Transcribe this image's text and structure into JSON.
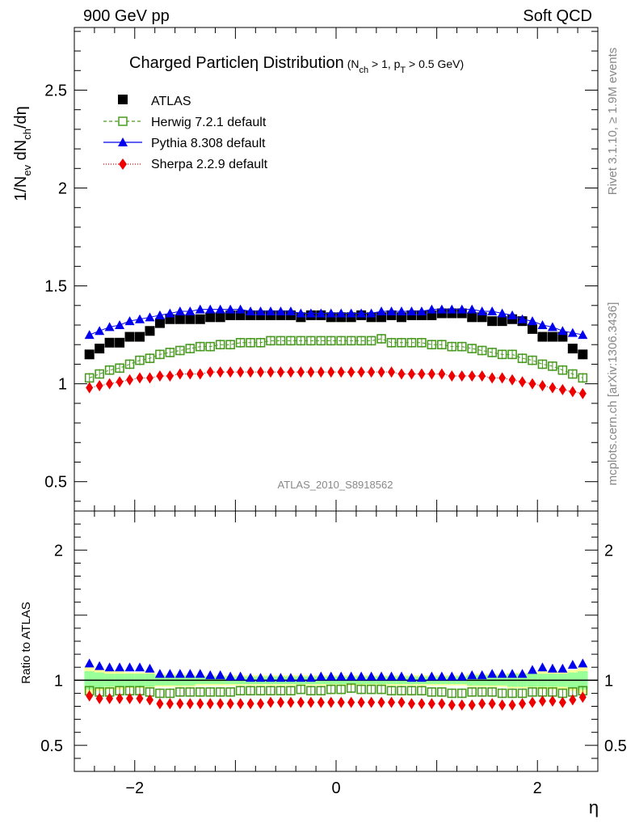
{
  "header": {
    "left": "900 GeV pp",
    "right": "Soft QCD"
  },
  "side": {
    "rivet": "Rivet 3.1.10, ≥ 1.9M events",
    "mcplots": "mcplots.cern.ch [arXiv:1306.3436]"
  },
  "chart_data": [
    {
      "type": "scatter",
      "title": {
        "main": "Charged Particle",
        "eta": "η",
        "dist": " Distribution",
        "cond_a": "(N",
        "cond_ch": "ch",
        "cond_b": " > 1, p",
        "cond_T": "T",
        "cond_c": " > 0.5 GeV)"
      },
      "ylabel_parts": [
        "1/N",
        "ev",
        " dN",
        "ch",
        "/dη"
      ],
      "watermark": "ATLAS_2010_S8918562",
      "xlim": [
        -2.6,
        2.6
      ],
      "ylim": [
        0.35,
        2.82
      ],
      "yticks": [
        "0.5",
        "1",
        "1.5",
        "2",
        "2.5"
      ],
      "x": [
        -2.45,
        -2.35,
        -2.25,
        -2.15,
        -2.05,
        -1.95,
        -1.85,
        -1.75,
        -1.65,
        -1.55,
        -1.45,
        -1.35,
        -1.25,
        -1.15,
        -1.05,
        -0.95,
        -0.85,
        -0.75,
        -0.65,
        -0.55,
        -0.45,
        -0.35,
        -0.25,
        -0.15,
        -0.05,
        0.05,
        0.15,
        0.25,
        0.35,
        0.45,
        0.55,
        0.65,
        0.75,
        0.85,
        0.95,
        1.05,
        1.15,
        1.25,
        1.35,
        1.45,
        1.55,
        1.65,
        1.75,
        1.85,
        1.95,
        2.05,
        2.15,
        2.25,
        2.35,
        2.45
      ],
      "series": [
        {
          "name": "ATLAS",
          "color": "#000000",
          "marker": "square",
          "values": [
            1.15,
            1.18,
            1.21,
            1.21,
            1.24,
            1.24,
            1.27,
            1.31,
            1.33,
            1.33,
            1.33,
            1.33,
            1.34,
            1.34,
            1.35,
            1.35,
            1.35,
            1.35,
            1.35,
            1.35,
            1.35,
            1.34,
            1.35,
            1.35,
            1.34,
            1.34,
            1.34,
            1.35,
            1.34,
            1.34,
            1.35,
            1.34,
            1.35,
            1.35,
            1.35,
            1.36,
            1.36,
            1.36,
            1.34,
            1.34,
            1.32,
            1.32,
            1.33,
            1.32,
            1.28,
            1.24,
            1.24,
            1.24,
            1.18,
            1.15
          ]
        },
        {
          "name": "Herwig 7.2.1 default",
          "color": "#4a9a22",
          "marker": "open-square",
          "line": "dashed",
          "values": [
            1.03,
            1.05,
            1.07,
            1.08,
            1.1,
            1.12,
            1.13,
            1.15,
            1.16,
            1.17,
            1.18,
            1.19,
            1.19,
            1.2,
            1.2,
            1.21,
            1.21,
            1.21,
            1.22,
            1.22,
            1.22,
            1.22,
            1.22,
            1.22,
            1.22,
            1.22,
            1.22,
            1.22,
            1.22,
            1.23,
            1.21,
            1.21,
            1.21,
            1.21,
            1.2,
            1.2,
            1.19,
            1.19,
            1.18,
            1.17,
            1.16,
            1.15,
            1.15,
            1.13,
            1.12,
            1.1,
            1.09,
            1.07,
            1.05,
            1.03
          ]
        },
        {
          "name": "Pythia 8.308 default",
          "color": "#0000ee",
          "marker": "triangle",
          "line": "solid",
          "values": [
            1.25,
            1.27,
            1.29,
            1.3,
            1.32,
            1.33,
            1.34,
            1.35,
            1.36,
            1.37,
            1.37,
            1.38,
            1.38,
            1.38,
            1.38,
            1.38,
            1.37,
            1.37,
            1.37,
            1.37,
            1.37,
            1.36,
            1.36,
            1.36,
            1.36,
            1.36,
            1.36,
            1.36,
            1.36,
            1.37,
            1.37,
            1.37,
            1.37,
            1.37,
            1.38,
            1.38,
            1.38,
            1.38,
            1.38,
            1.37,
            1.37,
            1.36,
            1.35,
            1.33,
            1.32,
            1.3,
            1.29,
            1.27,
            1.26,
            1.25
          ]
        },
        {
          "name": "Sherpa 2.2.9 default",
          "color": "#ee0000",
          "marker": "diamond",
          "line": "dotted",
          "values": [
            0.98,
            0.99,
            1.0,
            1.01,
            1.02,
            1.03,
            1.03,
            1.04,
            1.04,
            1.05,
            1.05,
            1.05,
            1.06,
            1.06,
            1.06,
            1.06,
            1.06,
            1.06,
            1.06,
            1.06,
            1.06,
            1.06,
            1.06,
            1.06,
            1.06,
            1.06,
            1.06,
            1.06,
            1.06,
            1.06,
            1.06,
            1.05,
            1.05,
            1.05,
            1.05,
            1.05,
            1.04,
            1.04,
            1.04,
            1.04,
            1.03,
            1.03,
            1.02,
            1.01,
            1.0,
            0.99,
            0.98,
            0.97,
            0.96,
            0.95
          ]
        }
      ]
    },
    {
      "type": "scatter",
      "ylabel": "Ratio to ATLAS",
      "xlabel": "η",
      "xlim": [
        -2.6,
        2.6
      ],
      "ylim": [
        0.3,
        2.3
      ],
      "xticks": [
        "−2",
        "0",
        "2"
      ],
      "yticks": [
        "0.5",
        "1",
        "2"
      ],
      "ratio_band": {
        "green_x_edges": [
          -2.5,
          -2.4,
          -2.3,
          -2.2,
          -2.1,
          -2.0,
          -1.9,
          -1.8,
          -1.7,
          -1.6,
          -1.5,
          -1.4,
          -1.3,
          -1.2,
          -1.1,
          -1.0,
          -0.9,
          -0.8,
          -0.7,
          -0.6,
          -0.5,
          -0.4,
          -0.3,
          -0.2,
          -0.1,
          0.0,
          0.1,
          0.2,
          0.3,
          0.4,
          0.5,
          0.6,
          0.7,
          0.8,
          0.9,
          1.0,
          1.1,
          1.2,
          1.3,
          1.4,
          1.5,
          1.6,
          1.7,
          1.8,
          1.9,
          2.0,
          2.1,
          2.2,
          2.3,
          2.4,
          2.5
        ],
        "green_half_width": [
          0.07,
          0.06,
          0.05,
          0.05,
          0.05,
          0.05,
          0.05,
          0.04,
          0.04,
          0.04,
          0.04,
          0.03,
          0.03,
          0.03,
          0.03,
          0.03,
          0.03,
          0.03,
          0.03,
          0.03,
          0.03,
          0.03,
          0.03,
          0.03,
          0.03,
          0.03,
          0.03,
          0.03,
          0.03,
          0.03,
          0.03,
          0.03,
          0.03,
          0.03,
          0.03,
          0.03,
          0.03,
          0.03,
          0.04,
          0.04,
          0.04,
          0.04,
          0.05,
          0.05,
          0.05,
          0.05,
          0.05,
          0.05,
          0.06,
          0.07
        ],
        "yellow_half_width": [
          0.1,
          0.08,
          0.07,
          0.07,
          0.06,
          0.06,
          0.06,
          0.05,
          0.05,
          0.05,
          0.05,
          0.04,
          0.04,
          0.04,
          0.04,
          0.04,
          0.04,
          0.04,
          0.04,
          0.04,
          0.04,
          0.04,
          0.04,
          0.04,
          0.04,
          0.04,
          0.04,
          0.04,
          0.04,
          0.04,
          0.04,
          0.04,
          0.04,
          0.04,
          0.04,
          0.04,
          0.04,
          0.04,
          0.05,
          0.05,
          0.05,
          0.05,
          0.06,
          0.06,
          0.06,
          0.07,
          0.07,
          0.07,
          0.08,
          0.1
        ]
      },
      "series": [
        {
          "name": "Herwig 7.2.1 default",
          "color": "#4a9a22",
          "marker": "open-square",
          "values": [
            0.92,
            0.91,
            0.91,
            0.92,
            0.92,
            0.92,
            0.91,
            0.9,
            0.9,
            0.91,
            0.91,
            0.91,
            0.91,
            0.91,
            0.91,
            0.92,
            0.92,
            0.92,
            0.92,
            0.92,
            0.92,
            0.93,
            0.92,
            0.92,
            0.93,
            0.93,
            0.94,
            0.93,
            0.93,
            0.93,
            0.92,
            0.92,
            0.92,
            0.92,
            0.91,
            0.91,
            0.9,
            0.9,
            0.91,
            0.91,
            0.91,
            0.9,
            0.9,
            0.9,
            0.91,
            0.91,
            0.91,
            0.9,
            0.91,
            0.92
          ]
        },
        {
          "name": "Pythia 8.308 default",
          "color": "#0000ee",
          "marker": "triangle",
          "values": [
            1.13,
            1.11,
            1.1,
            1.1,
            1.1,
            1.1,
            1.09,
            1.05,
            1.05,
            1.05,
            1.05,
            1.05,
            1.04,
            1.04,
            1.03,
            1.03,
            1.02,
            1.02,
            1.02,
            1.02,
            1.02,
            1.02,
            1.02,
            1.03,
            1.03,
            1.03,
            1.03,
            1.03,
            1.03,
            1.03,
            1.03,
            1.03,
            1.02,
            1.02,
            1.03,
            1.03,
            1.03,
            1.03,
            1.04,
            1.04,
            1.05,
            1.05,
            1.05,
            1.05,
            1.08,
            1.1,
            1.09,
            1.09,
            1.12,
            1.13
          ]
        },
        {
          "name": "Sherpa 2.2.9 default",
          "color": "#ee0000",
          "marker": "diamond",
          "values": [
            0.88,
            0.86,
            0.86,
            0.86,
            0.86,
            0.86,
            0.85,
            0.82,
            0.82,
            0.82,
            0.82,
            0.82,
            0.82,
            0.82,
            0.82,
            0.82,
            0.82,
            0.82,
            0.83,
            0.83,
            0.83,
            0.83,
            0.83,
            0.83,
            0.83,
            0.83,
            0.83,
            0.83,
            0.83,
            0.83,
            0.83,
            0.83,
            0.82,
            0.82,
            0.82,
            0.82,
            0.81,
            0.81,
            0.81,
            0.82,
            0.82,
            0.81,
            0.81,
            0.82,
            0.83,
            0.84,
            0.84,
            0.83,
            0.85,
            0.87
          ]
        }
      ]
    }
  ]
}
